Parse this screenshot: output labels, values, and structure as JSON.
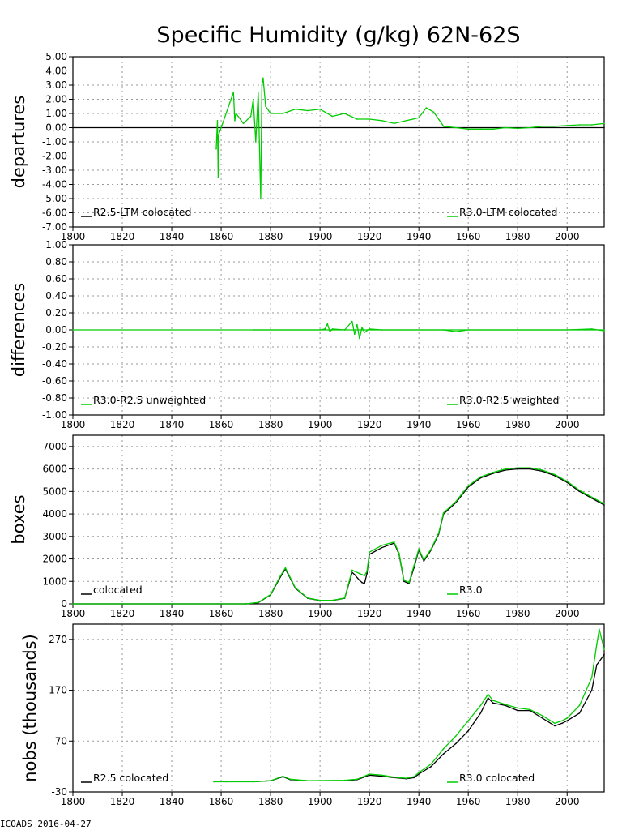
{
  "title": "Specific Humidity (g/kg) 62N-62S",
  "footer": "ICOADS 2016-04-27",
  "colors": {
    "R2.5": "#000000",
    "R3.0": "#00cc00",
    "zero_line": "#000000"
  },
  "chart_data": [
    {
      "id": "departures",
      "type": "line",
      "ylabel": "departures",
      "xlim": [
        1800,
        2015
      ],
      "ylim": [
        -7,
        5
      ],
      "x_ticks": [
        1800,
        1820,
        1840,
        1860,
        1880,
        1900,
        1920,
        1940,
        1960,
        1980,
        2000
      ],
      "y_ticks": [
        "5.00",
        "4.00",
        "3.00",
        "2.00",
        "1.00",
        "0.00",
        "-1.00",
        "-2.00",
        "-3.00",
        "-4.00",
        "-5.00",
        "-6.00",
        "-7.00"
      ],
      "grid": true,
      "legend": [
        "R2.5-LTM colocated",
        "R3.0-LTM colocated"
      ],
      "series": [
        {
          "name": "R3.0-LTM colocated",
          "x": [
            1858,
            1858.5,
            1858.8,
            1859,
            1865,
            1865.5,
            1866,
            1869,
            1872,
            1873,
            1874,
            1875,
            1876,
            1876.5,
            1877,
            1878,
            1880,
            1885,
            1890,
            1895,
            1900,
            1905,
            1910,
            1915,
            1920,
            1925,
            1930,
            1935,
            1940,
            1943,
            1946,
            1950,
            1955,
            1960,
            1965,
            1970,
            1975,
            1980,
            1985,
            1990,
            1995,
            2000,
            2005,
            2010,
            2015
          ],
          "y": [
            -1.5,
            0.5,
            -3.5,
            -0.5,
            2.5,
            0.5,
            1.0,
            0.3,
            0.8,
            2.0,
            -1.0,
            2.5,
            -5.0,
            3.0,
            3.5,
            1.5,
            1.0,
            1.0,
            1.3,
            1.2,
            1.3,
            0.8,
            1.0,
            0.6,
            0.6,
            0.5,
            0.3,
            0.5,
            0.7,
            1.4,
            1.1,
            0.1,
            0.0,
            -0.1,
            -0.1,
            -0.1,
            0.0,
            -0.05,
            0.0,
            0.1,
            0.1,
            0.15,
            0.2,
            0.2,
            0.3
          ]
        },
        {
          "name": "R2.5-LTM colocated",
          "x": [
            1800,
            2015
          ],
          "y": [
            0,
            0
          ]
        }
      ]
    },
    {
      "id": "differences",
      "type": "line",
      "ylabel": "differences",
      "xlim": [
        1800,
        2015
      ],
      "ylim": [
        -1,
        1
      ],
      "x_ticks": [
        1800,
        1820,
        1840,
        1860,
        1880,
        1900,
        1920,
        1940,
        1960,
        1980,
        2000
      ],
      "y_ticks": [
        "1.00",
        "0.80",
        "0.60",
        "0.40",
        "0.20",
        "0.00",
        "-0.20",
        "-0.40",
        "-0.60",
        "-0.80",
        "-1.00"
      ],
      "grid": true,
      "legend": [
        "R3.0-R2.5 unweighted",
        "R3.0-R2.5 weighted"
      ],
      "series": [
        {
          "name": "R3.0-R2.5 weighted",
          "x": [
            1873,
            1900,
            1902,
            1903,
            1904,
            1905,
            1910,
            1913,
            1914,
            1915,
            1916,
            1917,
            1918,
            1920,
            1925,
            1950,
            1955,
            1960,
            1980,
            2000,
            2010,
            2015
          ],
          "y": [
            0,
            0,
            0.01,
            0.07,
            -0.02,
            0.01,
            0,
            0.1,
            -0.05,
            0.06,
            -0.1,
            0.03,
            -0.03,
            0.01,
            0,
            0,
            -0.02,
            0,
            0,
            0,
            0.01,
            -0.01
          ]
        },
        {
          "name": "R3.0-R2.5 unweighted",
          "x": [
            1800,
            2015
          ],
          "y": [
            0,
            0
          ]
        }
      ]
    },
    {
      "id": "boxes",
      "type": "line",
      "ylabel": "boxes",
      "xlim": [
        1800,
        2015
      ],
      "ylim": [
        0,
        7500
      ],
      "x_ticks": [
        1800,
        1820,
        1840,
        1860,
        1880,
        1900,
        1920,
        1940,
        1960,
        1980,
        2000
      ],
      "y_ticks": [
        "7000",
        "6000",
        "5000",
        "4000",
        "3000",
        "2000",
        "1000",
        "0"
      ],
      "grid": true,
      "legend": [
        "colocated",
        "R3.0"
      ],
      "series": [
        {
          "name": "colocated",
          "x": [
            1800,
            1870,
            1875,
            1880,
            1884,
            1886,
            1890,
            1895,
            1900,
            1905,
            1910,
            1913,
            1914,
            1916,
            1917,
            1918,
            1919,
            1920,
            1925,
            1930,
            1932,
            1934,
            1936,
            1938,
            1940,
            1942,
            1945,
            1948,
            1950,
            1955,
            1960,
            1965,
            1970,
            1975,
            1980,
            1985,
            1990,
            1995,
            2000,
            2005,
            2010,
            2015
          ],
          "y": [
            0,
            0,
            50,
            400,
            1200,
            1550,
            700,
            250,
            150,
            150,
            250,
            1400,
            1300,
            1050,
            950,
            900,
            1350,
            2200,
            2500,
            2700,
            2200,
            1000,
            900,
            1600,
            2400,
            1900,
            2400,
            3100,
            4000,
            4500,
            5200,
            5600,
            5800,
            5950,
            6000,
            6000,
            5900,
            5700,
            5400,
            5000,
            4700,
            4400
          ]
        },
        {
          "name": "R3.0",
          "x": [
            1800,
            1870,
            1875,
            1880,
            1884,
            1886,
            1890,
            1895,
            1900,
            1905,
            1910,
            1913,
            1914,
            1916,
            1917,
            1918,
            1919,
            1920,
            1925,
            1930,
            1932,
            1934,
            1936,
            1938,
            1940,
            1942,
            1945,
            1948,
            1950,
            1955,
            1960,
            1965,
            1970,
            1975,
            1980,
            1985,
            1990,
            1995,
            2000,
            2005,
            2010,
            2015
          ],
          "y": [
            0,
            0,
            60,
            420,
            1250,
            1600,
            720,
            260,
            160,
            160,
            260,
            1500,
            1450,
            1350,
            1300,
            1250,
            1450,
            2300,
            2600,
            2750,
            2250,
            1050,
            950,
            1700,
            2450,
            1950,
            2450,
            3150,
            4050,
            4550,
            5250,
            5650,
            5850,
            6000,
            6050,
            6050,
            5950,
            5750,
            5450,
            5050,
            4750,
            4450
          ]
        }
      ]
    },
    {
      "id": "nobs",
      "type": "line",
      "ylabel": "nobs (thousands)",
      "xlim": [
        1800,
        2015
      ],
      "ylim": [
        -30,
        300
      ],
      "x_ticks": [
        1800,
        1820,
        1840,
        1860,
        1880,
        1900,
        1920,
        1940,
        1960,
        1980,
        2000
      ],
      "y_ticks": [
        "270",
        "170",
        "70",
        "-30"
      ],
      "grid": true,
      "legend": [
        "R2.5 colocated",
        "R3.0 colocated"
      ],
      "series": [
        {
          "name": "R2.5 colocated",
          "x": [
            1873,
            1880,
            1885,
            1888,
            1895,
            1910,
            1915,
            1920,
            1925,
            1930,
            1935,
            1938,
            1940,
            1945,
            1950,
            1955,
            1960,
            1965,
            1968,
            1970,
            1975,
            1980,
            1985,
            1990,
            1995,
            1998,
            2000,
            2005,
            2010,
            2012,
            2015
          ],
          "y": [
            -10,
            -8,
            0,
            -6,
            -8,
            -8,
            -6,
            3,
            1,
            -2,
            -4,
            -2,
            5,
            20,
            45,
            65,
            90,
            125,
            155,
            145,
            140,
            130,
            130,
            115,
            100,
            105,
            110,
            125,
            170,
            220,
            240
          ]
        },
        {
          "name": "R3.0 colocated",
          "x": [
            1857,
            1862,
            1866,
            1873,
            1880,
            1885,
            1888,
            1895,
            1910,
            1915,
            1920,
            1925,
            1930,
            1935,
            1938,
            1940,
            1945,
            1950,
            1955,
            1960,
            1965,
            1968,
            1970,
            1975,
            1980,
            1985,
            1990,
            1995,
            1998,
            2000,
            2005,
            2010,
            2012,
            2013,
            2015
          ],
          "y": [
            -10,
            -10,
            -10,
            -10,
            -8,
            1,
            -5,
            -8,
            -7,
            -5,
            5,
            3,
            -1,
            -3,
            0,
            8,
            25,
            55,
            80,
            110,
            140,
            162,
            150,
            142,
            135,
            132,
            120,
            105,
            110,
            115,
            140,
            195,
            260,
            290,
            250
          ]
        }
      ]
    }
  ]
}
